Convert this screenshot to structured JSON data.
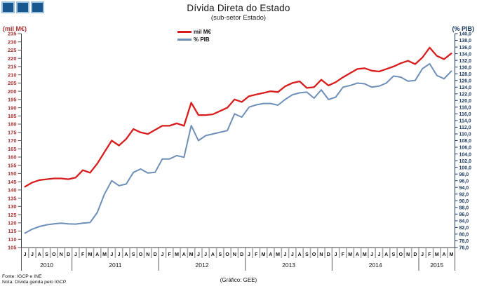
{
  "header": {
    "title": "Dívida Direta do Estado",
    "subtitle": "(sub-setor Estado)",
    "left_unit_label": "(mil M€)",
    "right_unit_label": "(% PIB)"
  },
  "logo": {
    "square_fill": "#19588f",
    "square_border": "#9dc3de",
    "square_count": 3
  },
  "footer": {
    "source": "Fonte: IGCP e INE",
    "note": "Nota: Dívida gerida pelo IGCP",
    "credit": "(Gráfico: GEE)"
  },
  "chart_data": {
    "type": "line",
    "title": "Dívida Direta do Estado",
    "subtitle": "(sub-setor Estado)",
    "grid": false,
    "legend_position": "top-center",
    "left_axis": {
      "label": "(mil M€)",
      "min": 105,
      "max": 235,
      "step": 5,
      "color": "#a83232",
      "format": "integer"
    },
    "right_axis": {
      "label": "(% PIB)",
      "min": 76,
      "max": 140,
      "step": 2,
      "color": "#17375e",
      "format": "comma-decimal-1"
    },
    "x": {
      "years": [
        {
          "label": "2010",
          "months": [
            "J",
            "J",
            "A",
            "S",
            "O",
            "N",
            "D"
          ]
        },
        {
          "label": "2011",
          "months": [
            "J",
            "F",
            "M",
            "A",
            "M",
            "J",
            "J",
            "A",
            "S",
            "O",
            "N",
            "D"
          ]
        },
        {
          "label": "2012",
          "months": [
            "J",
            "F",
            "M",
            "A",
            "M",
            "J",
            "J",
            "A",
            "S",
            "O",
            "N",
            "D"
          ]
        },
        {
          "label": "2013",
          "months": [
            "J",
            "F",
            "M",
            "A",
            "M",
            "J",
            "J",
            "A",
            "S",
            "O",
            "N",
            "D"
          ]
        },
        {
          "label": "2014",
          "months": [
            "J",
            "F",
            "M",
            "A",
            "M",
            "J",
            "J",
            "A",
            "S",
            "O",
            "N",
            "D"
          ]
        },
        {
          "label": "2015",
          "months": [
            "J",
            "F",
            "M",
            "A",
            "M"
          ]
        }
      ]
    },
    "series": [
      {
        "name": "mil M€",
        "axis": "left",
        "color": "#d91c1c",
        "stroke_width": 2.3,
        "values": [
          142,
          144.5,
          146,
          146.5,
          147,
          147,
          146.5,
          147.5,
          152,
          150.5,
          156,
          163,
          170,
          167,
          171,
          177,
          175,
          174,
          176.5,
          179,
          179,
          180.5,
          179,
          193,
          185.5,
          185.5,
          186,
          188,
          190,
          195,
          193.5,
          197,
          198,
          199,
          200,
          199.5,
          203,
          205,
          206,
          202,
          202.5,
          207,
          203.5,
          205.5,
          208.5,
          211,
          213.5,
          214,
          212.5,
          212,
          213.5,
          215,
          217,
          218.5,
          216.5,
          220.5,
          226.5,
          221.5,
          219.5,
          223
        ]
      },
      {
        "name": "% PIB",
        "axis": "right",
        "color": "#6d8fb8",
        "stroke_width": 2.0,
        "values": [
          80.3,
          81.5,
          82.3,
          82.8,
          83.1,
          83.3,
          83.1,
          83,
          83.3,
          83.5,
          86.5,
          92,
          96,
          94.5,
          95,
          98.5,
          99.5,
          98.3,
          98.5,
          102.5,
          102.5,
          103.5,
          103,
          112.5,
          108,
          109.5,
          110,
          110.5,
          111,
          116,
          115,
          118,
          118.7,
          119.1,
          119.1,
          118.6,
          120.3,
          121.7,
          122.3,
          122.5,
          120.7,
          123.2,
          120.3,
          121,
          124,
          124.5,
          125.2,
          125,
          124,
          124.3,
          125.2,
          127.3,
          127,
          125.8,
          126,
          129.5,
          131,
          127.5,
          126.5,
          128.8
        ]
      }
    ]
  }
}
